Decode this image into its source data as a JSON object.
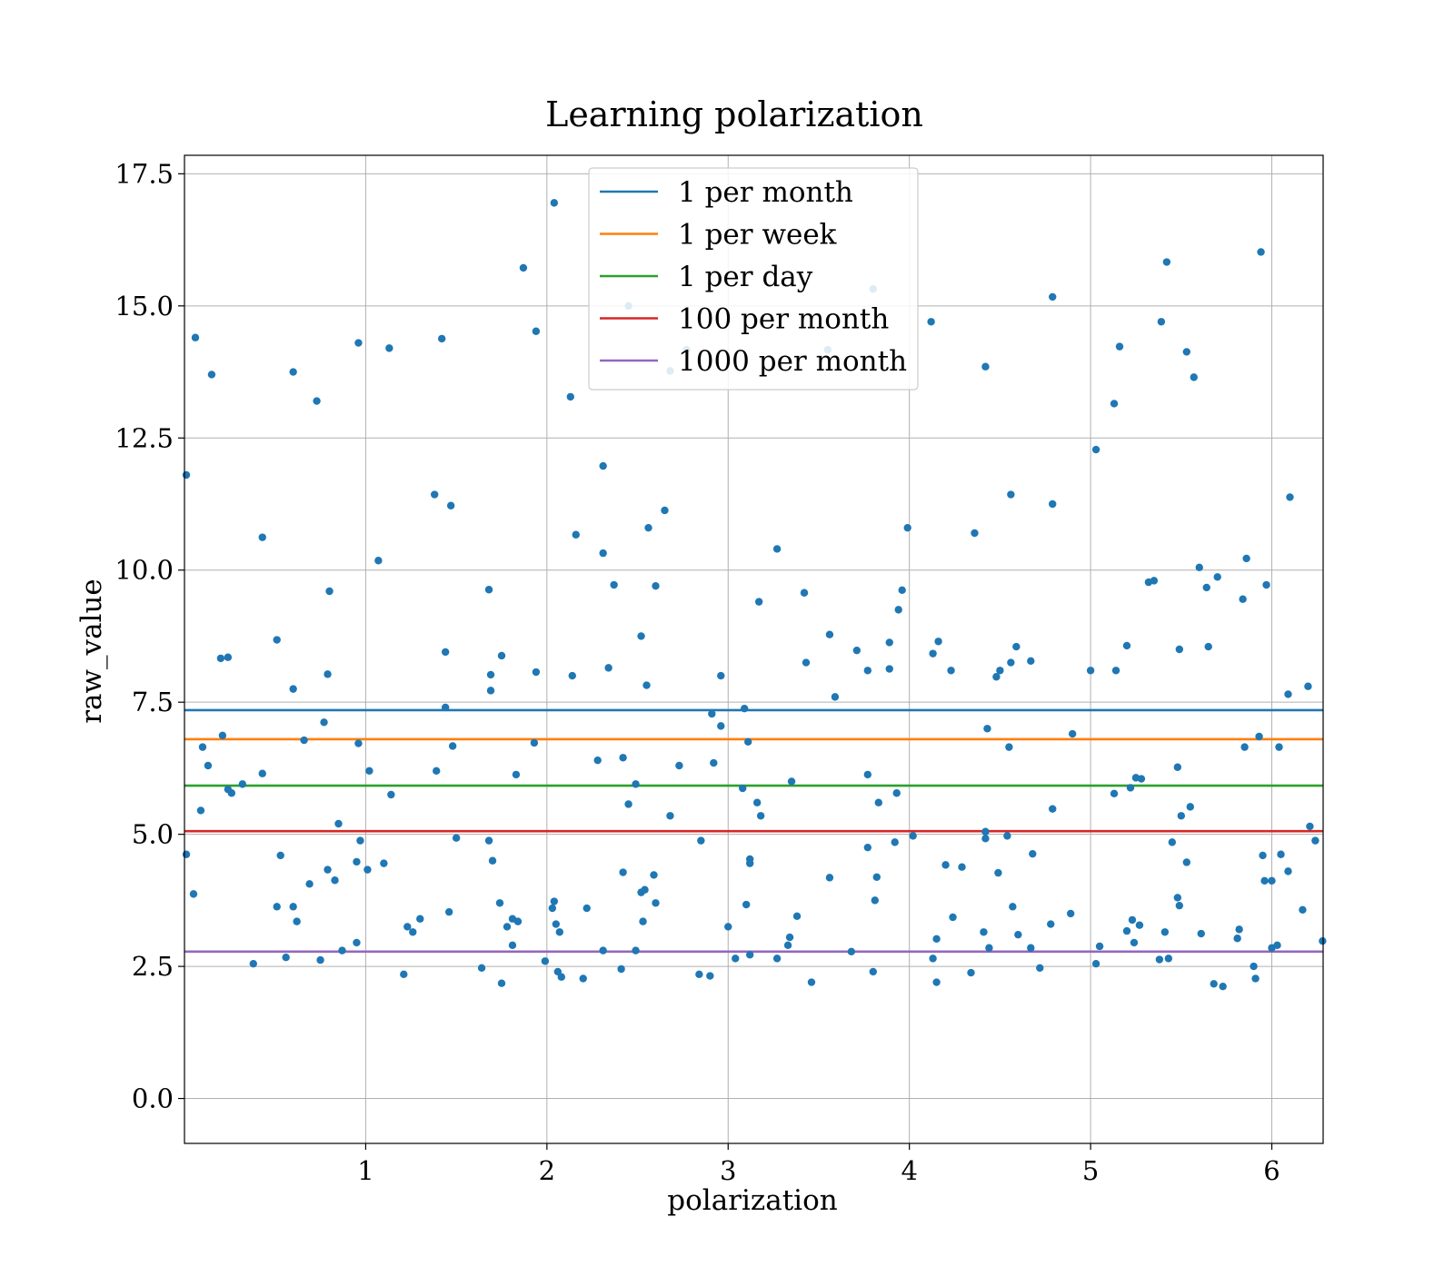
{
  "chart_data": {
    "type": "scatter",
    "title": "Learning polarization",
    "xlabel": "polarization",
    "ylabel": "raw_value",
    "xlim": [
      0.0,
      6.2832
    ],
    "ylim": [
      -0.85,
      17.85
    ],
    "x_ticks": [
      1,
      2,
      3,
      4,
      5,
      6
    ],
    "x_tick_labels": [
      "1",
      "2",
      "3",
      "4",
      "5",
      "6"
    ],
    "y_ticks": [
      0,
      2.5,
      5,
      7.5,
      10,
      12.5,
      15,
      17.5
    ],
    "y_tick_labels": [
      "0.0",
      "2.5",
      "5.0",
      "7.5",
      "10.0",
      "12.5",
      "15.0",
      "17.5"
    ],
    "grid": true,
    "legend_position": "upper center",
    "marker_color": "#1f77b4",
    "hlines": [
      {
        "name": "1 per month",
        "y": 7.35,
        "color": "#1f77b4"
      },
      {
        "name": "1 per week",
        "y": 6.8,
        "color": "#ff7f0e"
      },
      {
        "name": "1 per day",
        "y": 5.92,
        "color": "#2ca02c"
      },
      {
        "name": "100 per month",
        "y": 5.06,
        "color": "#d62728"
      },
      {
        "name": "1000 per month",
        "y": 2.78,
        "color": "#9467bd"
      }
    ],
    "points": [
      [
        0.01,
        11.8
      ],
      [
        0.01,
        4.62
      ],
      [
        0.05,
        3.87
      ],
      [
        0.06,
        14.4
      ],
      [
        0.15,
        13.7
      ],
      [
        0.2,
        8.33
      ],
      [
        0.24,
        8.35
      ],
      [
        0.43,
        10.62
      ],
      [
        0.51,
        8.68
      ],
      [
        0.6,
        13.75
      ],
      [
        0.73,
        13.2
      ],
      [
        0.8,
        9.6
      ],
      [
        0.96,
        14.3
      ],
      [
        1.07,
        10.18
      ],
      [
        1.13,
        14.2
      ],
      [
        1.38,
        11.43
      ],
      [
        1.42,
        14.38
      ],
      [
        1.47,
        11.22
      ],
      [
        1.68,
        9.63
      ],
      [
        1.87,
        15.72
      ],
      [
        1.94,
        14.52
      ],
      [
        2.04,
        16.95
      ],
      [
        2.16,
        10.67
      ],
      [
        2.13,
        13.28
      ],
      [
        2.31,
        11.97
      ],
      [
        2.31,
        10.32
      ],
      [
        2.37,
        9.72
      ],
      [
        2.45,
        15.0
      ],
      [
        2.56,
        10.8
      ],
      [
        2.65,
        11.13
      ],
      [
        2.6,
        9.7
      ],
      [
        2.68,
        13.77
      ],
      [
        2.77,
        14.17
      ],
      [
        3.17,
        9.4
      ],
      [
        3.27,
        10.4
      ],
      [
        3.42,
        9.57
      ],
      [
        3.55,
        14.17
      ],
      [
        3.8,
        15.32
      ],
      [
        3.94,
        9.25
      ],
      [
        3.99,
        10.8
      ],
      [
        4.12,
        14.7
      ],
      [
        4.36,
        10.7
      ],
      [
        4.42,
        13.85
      ],
      [
        4.56,
        11.43
      ],
      [
        4.79,
        15.17
      ],
      [
        4.79,
        11.25
      ],
      [
        5.03,
        12.28
      ],
      [
        5.13,
        13.15
      ],
      [
        5.16,
        14.23
      ],
      [
        5.39,
        14.7
      ],
      [
        5.42,
        15.83
      ],
      [
        5.53,
        14.13
      ],
      [
        5.57,
        13.65
      ],
      [
        5.6,
        10.05
      ],
      [
        5.64,
        9.67
      ],
      [
        5.7,
        9.87
      ],
      [
        5.86,
        10.22
      ],
      [
        5.94,
        16.02
      ],
      [
        5.97,
        9.72
      ],
      [
        6.1,
        11.38
      ],
      [
        6.09,
        7.65
      ],
      [
        6.2,
        7.8
      ],
      [
        0.21,
        6.87
      ],
      [
        0.1,
        6.65
      ],
      [
        0.13,
        6.3
      ],
      [
        0.09,
        5.45
      ],
      [
        0.26,
        5.78
      ],
      [
        0.32,
        5.95
      ],
      [
        0.43,
        6.15
      ],
      [
        0.24,
        5.85
      ],
      [
        0.6,
        7.75
      ],
      [
        0.66,
        6.78
      ],
      [
        0.77,
        7.12
      ],
      [
        0.79,
        8.03
      ],
      [
        0.96,
        6.72
      ],
      [
        1.02,
        6.2
      ],
      [
        1.14,
        5.75
      ],
      [
        1.39,
        6.2
      ],
      [
        1.44,
        8.45
      ],
      [
        1.48,
        6.67
      ],
      [
        1.44,
        7.4
      ],
      [
        1.69,
        8.02
      ],
      [
        1.69,
        7.72
      ],
      [
        1.75,
        8.38
      ],
      [
        1.83,
        6.13
      ],
      [
        1.93,
        6.73
      ],
      [
        1.94,
        8.07
      ],
      [
        2.14,
        8.0
      ],
      [
        2.28,
        6.4
      ],
      [
        2.34,
        8.15
      ],
      [
        2.42,
        6.45
      ],
      [
        2.49,
        5.95
      ],
      [
        2.52,
        8.75
      ],
      [
        2.55,
        7.82
      ],
      [
        2.73,
        6.3
      ],
      [
        2.96,
        8.0
      ],
      [
        2.91,
        7.28
      ],
      [
        2.92,
        6.35
      ],
      [
        2.96,
        7.05
      ],
      [
        3.09,
        7.38
      ],
      [
        3.11,
        6.75
      ],
      [
        3.08,
        5.87
      ],
      [
        3.16,
        5.6
      ],
      [
        3.18,
        5.35
      ],
      [
        3.35,
        6.0
      ],
      [
        3.43,
        8.25
      ],
      [
        3.56,
        8.78
      ],
      [
        3.59,
        7.6
      ],
      [
        3.71,
        8.48
      ],
      [
        3.77,
        8.1
      ],
      [
        3.77,
        6.13
      ],
      [
        3.83,
        5.6
      ],
      [
        3.89,
        8.63
      ],
      [
        3.89,
        8.13
      ],
      [
        3.93,
        5.78
      ],
      [
        3.96,
        9.62
      ],
      [
        4.13,
        8.42
      ],
      [
        4.16,
        8.65
      ],
      [
        4.23,
        8.1
      ],
      [
        4.43,
        7.0
      ],
      [
        4.48,
        7.98
      ],
      [
        4.5,
        8.1
      ],
      [
        4.55,
        6.65
      ],
      [
        4.56,
        8.25
      ],
      [
        4.59,
        8.55
      ],
      [
        4.67,
        8.28
      ],
      [
        4.79,
        5.48
      ],
      [
        4.9,
        6.9
      ],
      [
        5.0,
        8.1
      ],
      [
        5.13,
        5.77
      ],
      [
        5.14,
        8.1
      ],
      [
        5.2,
        8.57
      ],
      [
        5.22,
        5.88
      ],
      [
        5.25,
        6.07
      ],
      [
        5.28,
        6.05
      ],
      [
        5.32,
        9.77
      ],
      [
        5.35,
        9.8
      ],
      [
        5.49,
        8.5
      ],
      [
        5.48,
        6.27
      ],
      [
        5.5,
        5.35
      ],
      [
        5.55,
        5.52
      ],
      [
        5.65,
        8.55
      ],
      [
        5.84,
        9.45
      ],
      [
        5.85,
        6.65
      ],
      [
        5.93,
        6.85
      ],
      [
        6.04,
        6.65
      ],
      [
        6.05,
        4.62
      ],
      [
        6.21,
        5.15
      ],
      [
        0.51,
        3.63
      ],
      [
        0.53,
        4.6
      ],
      [
        0.6,
        3.63
      ],
      [
        0.62,
        3.35
      ],
      [
        0.69,
        4.06
      ],
      [
        0.79,
        4.33
      ],
      [
        0.83,
        4.13
      ],
      [
        0.85,
        5.2
      ],
      [
        0.95,
        4.48
      ],
      [
        0.97,
        4.88
      ],
      [
        1.01,
        4.33
      ],
      [
        1.1,
        4.45
      ],
      [
        1.5,
        4.93
      ],
      [
        1.46,
        3.53
      ],
      [
        1.68,
        4.88
      ],
      [
        1.7,
        4.5
      ],
      [
        1.74,
        3.7
      ],
      [
        1.78,
        3.25
      ],
      [
        1.81,
        3.4
      ],
      [
        1.81,
        2.9
      ],
      [
        1.84,
        3.35
      ],
      [
        2.03,
        3.6
      ],
      [
        2.04,
        3.73
      ],
      [
        2.05,
        3.3
      ],
      [
        2.07,
        3.15
      ],
      [
        2.22,
        3.6
      ],
      [
        2.42,
        4.28
      ],
      [
        2.45,
        5.57
      ],
      [
        2.52,
        3.9
      ],
      [
        2.54,
        3.95
      ],
      [
        2.59,
        4.23
      ],
      [
        2.6,
        3.7
      ],
      [
        2.53,
        3.35
      ],
      [
        2.68,
        5.35
      ],
      [
        2.85,
        4.88
      ],
      [
        3.0,
        3.25
      ],
      [
        3.1,
        3.67
      ],
      [
        3.12,
        4.53
      ],
      [
        3.12,
        4.45
      ],
      [
        3.34,
        3.05
      ],
      [
        3.38,
        3.45
      ],
      [
        3.56,
        4.18
      ],
      [
        3.77,
        4.75
      ],
      [
        3.81,
        3.75
      ],
      [
        3.82,
        4.19
      ],
      [
        3.92,
        4.85
      ],
      [
        4.02,
        4.97
      ],
      [
        4.15,
        3.02
      ],
      [
        4.2,
        4.42
      ],
      [
        4.24,
        3.43
      ],
      [
        4.29,
        4.38
      ],
      [
        4.42,
        5.05
      ],
      [
        4.42,
        4.92
      ],
      [
        4.41,
        3.15
      ],
      [
        4.49,
        4.27
      ],
      [
        4.54,
        4.97
      ],
      [
        4.57,
        3.63
      ],
      [
        4.6,
        3.1
      ],
      [
        4.68,
        4.63
      ],
      [
        4.78,
        3.3
      ],
      [
        4.89,
        3.5
      ],
      [
        5.41,
        3.15
      ],
      [
        5.45,
        4.85
      ],
      [
        5.48,
        3.8
      ],
      [
        5.49,
        3.65
      ],
      [
        5.53,
        4.47
      ],
      [
        5.61,
        3.12
      ],
      [
        5.81,
        3.03
      ],
      [
        5.82,
        3.2
      ],
      [
        5.95,
        4.6
      ],
      [
        5.96,
        4.12
      ],
      [
        6.0,
        4.12
      ],
      [
        6.03,
        2.9
      ],
      [
        6.09,
        4.3
      ],
      [
        6.17,
        3.57
      ],
      [
        6.24,
        4.88
      ],
      [
        6.28,
        2.98
      ],
      [
        0.38,
        2.55
      ],
      [
        0.56,
        2.67
      ],
      [
        0.75,
        2.62
      ],
      [
        0.87,
        2.8
      ],
      [
        0.95,
        2.95
      ],
      [
        1.23,
        3.25
      ],
      [
        1.26,
        3.15
      ],
      [
        1.3,
        3.4
      ],
      [
        1.21,
        2.35
      ],
      [
        1.64,
        2.47
      ],
      [
        1.75,
        2.18
      ],
      [
        1.99,
        2.6
      ],
      [
        2.06,
        2.4
      ],
      [
        2.08,
        2.3
      ],
      [
        2.2,
        2.27
      ],
      [
        2.31,
        2.8
      ],
      [
        2.41,
        2.45
      ],
      [
        2.49,
        2.8
      ],
      [
        2.84,
        2.35
      ],
      [
        2.9,
        2.32
      ],
      [
        3.04,
        2.65
      ],
      [
        3.12,
        2.72
      ],
      [
        3.27,
        2.65
      ],
      [
        3.33,
        2.9
      ],
      [
        3.46,
        2.2
      ],
      [
        3.68,
        2.78
      ],
      [
        3.8,
        2.4
      ],
      [
        4.13,
        2.65
      ],
      [
        4.15,
        2.2
      ],
      [
        4.34,
        2.38
      ],
      [
        4.44,
        2.85
      ],
      [
        4.67,
        2.85
      ],
      [
        4.72,
        2.47
      ],
      [
        5.03,
        2.55
      ],
      [
        5.05,
        2.88
      ],
      [
        5.27,
        3.28
      ],
      [
        5.23,
        3.38
      ],
      [
        5.2,
        3.17
      ],
      [
        5.24,
        2.95
      ],
      [
        5.38,
        2.63
      ],
      [
        5.43,
        2.65
      ],
      [
        5.68,
        2.17
      ],
      [
        5.73,
        2.12
      ],
      [
        5.9,
        2.5
      ],
      [
        5.91,
        2.27
      ],
      [
        6.0,
        2.85
      ]
    ]
  }
}
